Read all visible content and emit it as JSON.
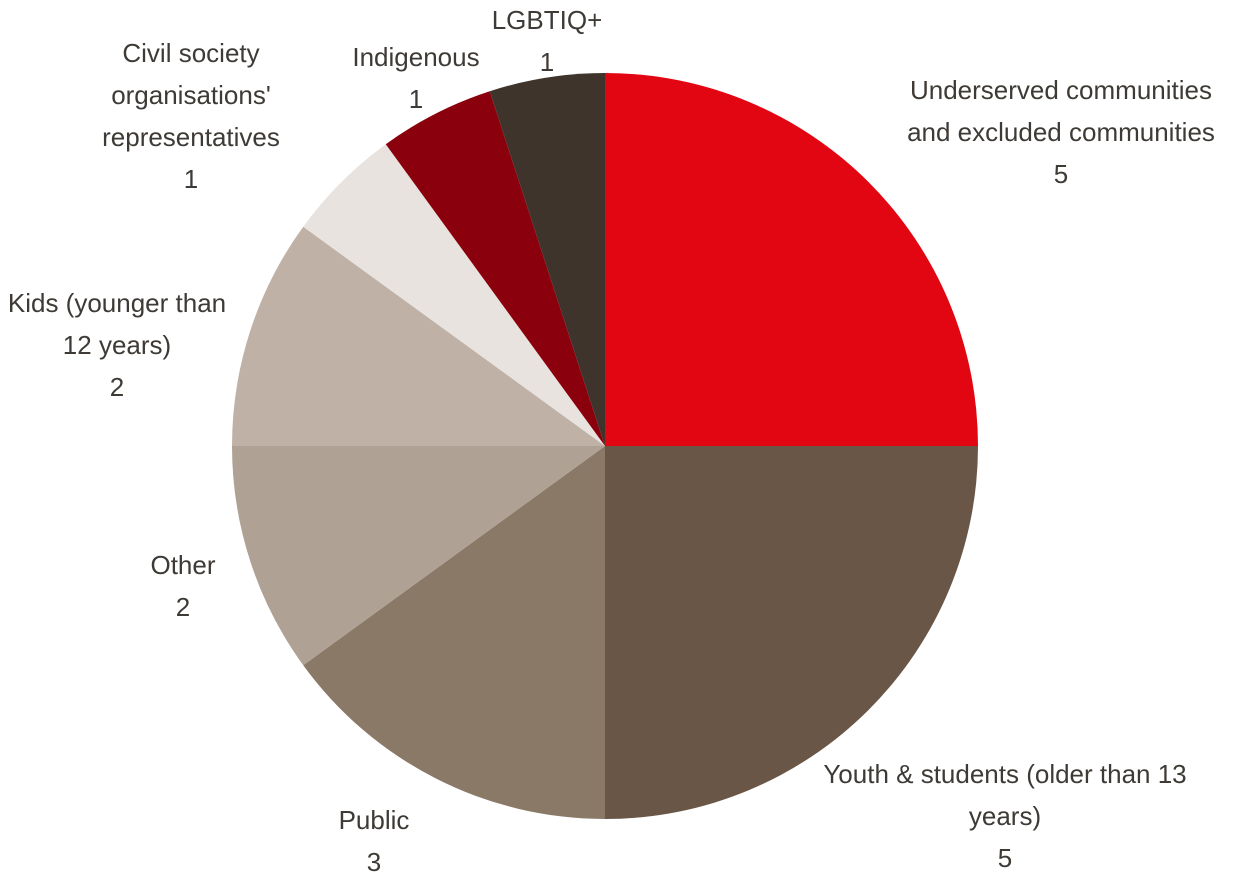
{
  "chart_data": {
    "type": "pie",
    "categories": [
      "Underserved communities and excluded communities",
      "Youth & students (older than 13 years)",
      "Public",
      "Other",
      "Kids (younger than 12 years)",
      "Civil society organisations' representatives",
      "Indigenous",
      "LGBTIQ+"
    ],
    "values": [
      5,
      5,
      3,
      2,
      2,
      1,
      1,
      1
    ],
    "colors": [
      "#e20613",
      "#695646",
      "#8b7968",
      "#b0a195",
      "#c0b1a6",
      "#e8e3df",
      "#8a000c",
      "#3e342b"
    ]
  }
}
